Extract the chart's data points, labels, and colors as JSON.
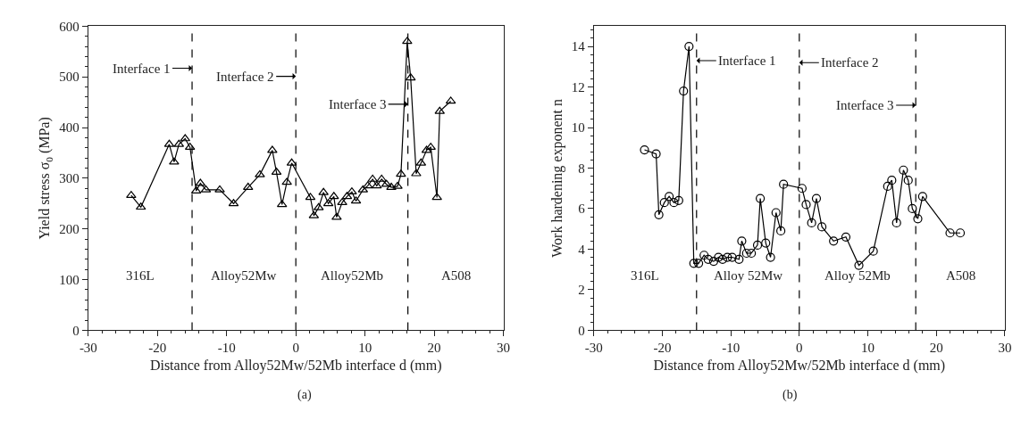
{
  "chart_data": [
    {
      "type": "line",
      "xlabel": "Distance from Alloy52Mw/52Mb interface d (mm)",
      "ylabel": "Yield stress σ$_{0}$ (MPa)",
      "marker": "triangle",
      "line_style": "solid",
      "xlim": [
        -30,
        30
      ],
      "xticks": [
        -30,
        -20,
        -10,
        0,
        10,
        20,
        30
      ],
      "ylim": [
        0,
        600
      ],
      "yticks": [
        0,
        100,
        200,
        300,
        400,
        500,
        600
      ],
      "x": [
        -23.8,
        -22.4,
        -18.3,
        -17.6,
        -16.9,
        -16.0,
        -15.3,
        -14.4,
        -13.8,
        -13.0,
        -11.0,
        -9.0,
        -6.9,
        -5.2,
        -3.4,
        -2.8,
        -2.0,
        -1.3,
        -0.6,
        2.1,
        2.6,
        3.3,
        4.0,
        4.7,
        5.5,
        5.9,
        6.7,
        7.4,
        8.1,
        8.7,
        9.7,
        10.4,
        11.1,
        11.7,
        12.4,
        13.1,
        13.8,
        14.7,
        15.2,
        16.1,
        16.6,
        17.4,
        18.1,
        18.9,
        19.5,
        20.4,
        20.8,
        22.4
      ],
      "series": [
        {
          "color": "#000000",
          "values": [
            266,
            243,
            367,
            332,
            367,
            378,
            361,
            275,
            290,
            277,
            277,
            250,
            282,
            307,
            355,
            312,
            248,
            292,
            330,
            262,
            226,
            242,
            272,
            250,
            264,
            223,
            252,
            264,
            273,
            255,
            277,
            285,
            298,
            285,
            298,
            288,
            282,
            284,
            308,
            570,
            498,
            309,
            330,
            355,
            361,
            262,
            432,
            452
          ]
        }
      ],
      "ref_lines": [
        {
          "axis": "x",
          "value": -15,
          "line_style": "dashed",
          "color": "#000000"
        },
        {
          "axis": "x",
          "value": 0,
          "line_style": "dashed",
          "color": "#000000"
        },
        {
          "axis": "x",
          "value": 16.2,
          "line_style": "dashed",
          "color": "#000000"
        }
      ],
      "annotations": [
        {
          "text": "Interface 1",
          "x": -15,
          "y": 517
        },
        {
          "text": "Interface 2",
          "x": 0,
          "y": 501
        },
        {
          "text": "Interface 3",
          "x": 16.2,
          "y": 446
        },
        "316L",
        "Alloy52Mw",
        "Alloy52Mb",
        "A508",
        "(a)"
      ]
    },
    {
      "type": "line",
      "xlabel": "Distance from Alloy52Mw/52Mb interface d (mm)",
      "ylabel": "Work hardening exponent n",
      "marker": "circle",
      "line_style": "solid",
      "xlim": [
        -30,
        30
      ],
      "xticks": [
        -30,
        -20,
        -10,
        0,
        10,
        20,
        30
      ],
      "ylim": [
        0,
        15
      ],
      "yticks": [
        0,
        2,
        4,
        6,
        8,
        10,
        12,
        14
      ],
      "x": [
        -22.6,
        -20.9,
        -20.5,
        -19.7,
        -19.0,
        -18.3,
        -17.6,
        -16.9,
        -16.1,
        -15.4,
        -14.7,
        -13.9,
        -13.3,
        -12.5,
        -11.8,
        -11.2,
        -10.5,
        -9.8,
        -8.8,
        -8.4,
        -7.7,
        -7.0,
        -6.1,
        -5.7,
        -4.9,
        -4.2,
        -3.4,
        -2.7,
        -2.3,
        0.4,
        1.0,
        1.8,
        2.5,
        3.3,
        5.0,
        6.8,
        8.7,
        10.8,
        12.9,
        13.5,
        14.2,
        15.2,
        15.9,
        16.5,
        17.3,
        18.0,
        22.0,
        23.5
      ],
      "series": [
        {
          "color": "#000000",
          "values": [
            8.9,
            8.7,
            5.7,
            6.3,
            6.6,
            6.3,
            6.4,
            11.8,
            14.0,
            3.3,
            3.3,
            3.7,
            3.5,
            3.4,
            3.6,
            3.5,
            3.6,
            3.6,
            3.5,
            4.4,
            3.8,
            3.8,
            4.2,
            6.5,
            4.3,
            3.6,
            5.8,
            4.9,
            7.2,
            7.0,
            6.2,
            5.3,
            6.5,
            5.1,
            4.4,
            4.6,
            3.2,
            3.9,
            7.1,
            7.4,
            5.3,
            7.9,
            7.4,
            6.0,
            5.5,
            6.6,
            4.8,
            4.8
          ]
        }
      ],
      "ref_lines": [
        {
          "axis": "x",
          "value": -15,
          "line_style": "dashed",
          "color": "#000000"
        },
        {
          "axis": "x",
          "value": 0,
          "line_style": "dashed",
          "color": "#000000"
        },
        {
          "axis": "x",
          "value": 17,
          "line_style": "dashed",
          "color": "#000000"
        }
      ],
      "annotations": [
        {
          "text": "Interface 1",
          "x": -15,
          "y": 13.3
        },
        {
          "text": "Interface 2",
          "x": 0,
          "y": 13.2
        },
        {
          "text": "Interface 3",
          "x": 17,
          "y": 11.1
        },
        "316L",
        "Alloy 52Mw",
        "Alloy 52Mb",
        "A508",
        "(b)"
      ]
    }
  ]
}
